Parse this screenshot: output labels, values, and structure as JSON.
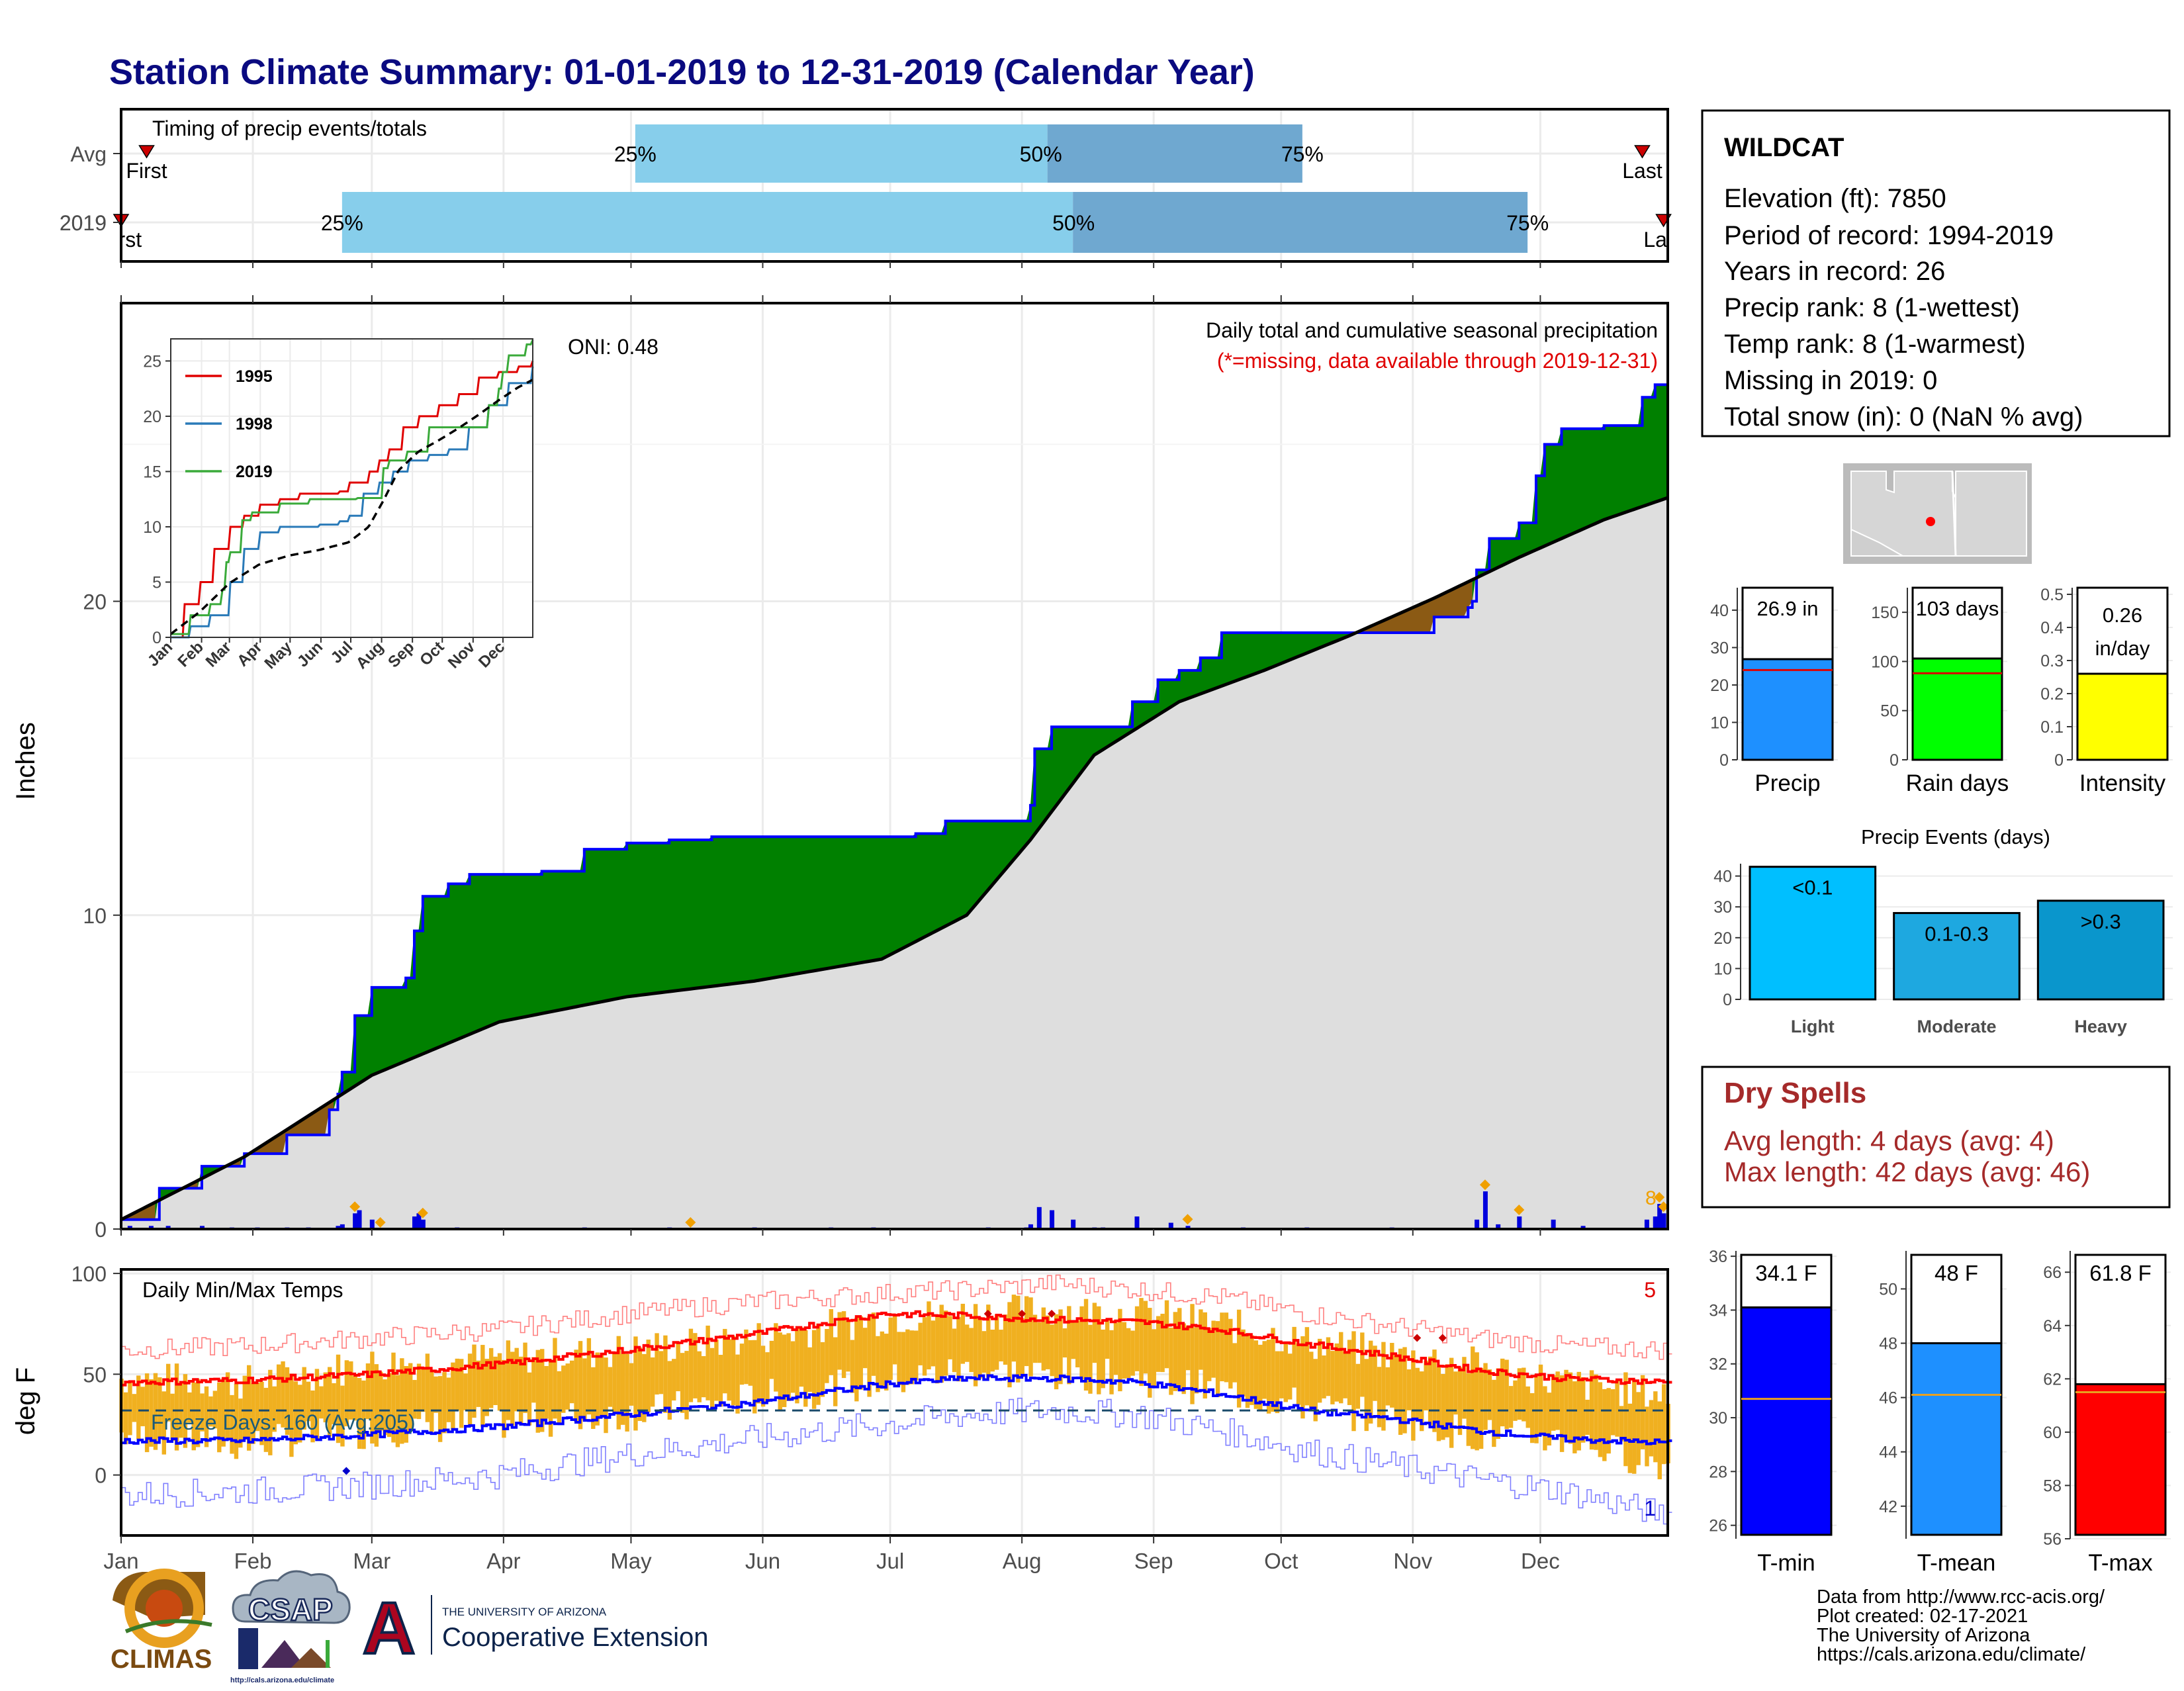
{
  "title": "Station Climate Summary: 01-01-2019 to 12-31-2019 (Calendar Year)",
  "colors": {
    "title": "#0a0a80",
    "green": "#008000",
    "brown": "#8b5a14",
    "avg_fill": "#dedede",
    "blue_line": "#0000ff",
    "light_blue": "#87ceeb",
    "mid_blue": "#6fa8d0",
    "orange": "#f0a000",
    "gold_bar": "#f0b020",
    "red": "#e00000",
    "dry_spell": "#a52a2a"
  },
  "timing": {
    "label": "Timing of precip events/totals",
    "rows": [
      {
        "name": "Avg",
        "first": "First",
        "last": "Last",
        "q25": "25%",
        "q50": "50%",
        "q75": "75%",
        "first_doy": 7,
        "q25_doy": 122,
        "q50_doy": 219,
        "q75_doy": 279,
        "last_doy": 359
      },
      {
        "name": "2019",
        "first": "First",
        "last": "Last",
        "q25": "25%",
        "q50": "50%",
        "q75": "75%",
        "first_doy": 1,
        "q25_doy": 53,
        "q50_doy": 225,
        "q75_doy": 332,
        "last_doy": 364
      }
    ]
  },
  "precip_panel": {
    "ylabel": "Inches",
    "yticks": [
      "0",
      "10",
      "20"
    ],
    "annotation_line1": "Daily total and cumulative seasonal precipitation",
    "annotation_line2": "(*=missing, data available through 2019-12-31)",
    "oni": "ONI: 0.48",
    "corner_count": "8"
  },
  "inset": {
    "yticks": [
      "0",
      "5",
      "10",
      "15",
      "20",
      "25"
    ],
    "months": [
      "Jan",
      "Feb",
      "Mar",
      "Apr",
      "May",
      "Jun",
      "Jul",
      "Aug",
      "Sep",
      "Oct",
      "Nov",
      "Dec"
    ],
    "legend": [
      {
        "label": "1995",
        "color": "#e00000"
      },
      {
        "label": "1998",
        "color": "#2a7ab8"
      },
      {
        "label": "2019",
        "color": "#3aaa3a"
      }
    ]
  },
  "temp_panel": {
    "ylabel": "deg F",
    "label": "Daily Min/Max Temps",
    "yticks": [
      "0",
      "50",
      "100"
    ],
    "freeze_days": "Freeze Days: 160 (Avg:205)",
    "max_count": "5",
    "min_count": "1",
    "freeze_line_value": 32
  },
  "months_axis": [
    "Jan",
    "Feb",
    "Mar",
    "Apr",
    "May",
    "Jun",
    "Jul",
    "Aug",
    "Sep",
    "Oct",
    "Nov",
    "Dec"
  ],
  "info_box": {
    "station": "WILDCAT",
    "lines": [
      "Elevation (ft): 7850",
      "Period of record: 1994-2019",
      "Years in record: 26",
      "Precip rank: 8 (1-wettest)",
      "Temp rank: 8 (1-warmest)",
      "Missing in 2019: 0",
      "Total snow (in): 0 (NaN % avg)"
    ]
  },
  "small_bars": [
    {
      "name": "Precip",
      "value_label": "26.9 in",
      "value": 26.9,
      "avg": 24,
      "ymax": 46,
      "ticks": [
        0,
        10,
        20,
        30,
        40
      ],
      "color": "#1e90ff"
    },
    {
      "name": "Rain days",
      "value_label": "103 days",
      "value": 103,
      "avg": 88,
      "ymax": 175,
      "ticks": [
        0,
        50,
        100,
        150
      ],
      "color": "#00ff00"
    },
    {
      "name": "Intensity",
      "value_label_1": "0.26",
      "value_label_2": "in/day",
      "value": 0.26,
      "avg": 0.265,
      "ymax": 0.52,
      "ticks": [
        0.0,
        0.1,
        0.2,
        0.3,
        0.4,
        0.5
      ],
      "color": "#ffff00"
    }
  ],
  "precip_events": {
    "title": "Precip Events (days)",
    "ymax": 44,
    "ticks": [
      0,
      10,
      20,
      30,
      40
    ],
    "bars": [
      {
        "category": "Light",
        "label": "<0.1",
        "value": 43,
        "color": "#00bfff"
      },
      {
        "category": "Moderate",
        "label": "0.1-0.3",
        "value": 28,
        "color": "#1ea8e0"
      },
      {
        "category": "Heavy",
        "label": ">0.3",
        "value": 32,
        "color": "#0a96cc"
      }
    ]
  },
  "dry_spells": {
    "title": "Dry Spells",
    "avg_line": "Avg length: 4 days (avg: 4)",
    "max_line": "Max length: 42 days (avg: 46)"
  },
  "temp_bars": [
    {
      "name": "T-min",
      "value_label": "34.1 F",
      "value": 34.1,
      "avg": 30.7,
      "ymin": 25.5,
      "ymax": 36.2,
      "ticks": [
        26,
        28,
        30,
        32,
        34,
        36
      ],
      "color": "#0000ff"
    },
    {
      "name": "T-mean",
      "value_label": "48 F",
      "value": 48.0,
      "avg": 46.1,
      "ymin": 40.8,
      "ymax": 51.4,
      "ticks": [
        42,
        44,
        46,
        48,
        50
      ],
      "color": "#1e90ff"
    },
    {
      "name": "T-max",
      "value_label": "61.8 F",
      "value": 61.8,
      "avg": 61.5,
      "ymin": 56,
      "ymax": 66.8,
      "ticks": [
        56,
        58,
        60,
        62,
        64,
        66
      ],
      "color": "#ff0000"
    }
  ],
  "credits": [
    "Data from http://www.rcc-acis.org/",
    "Plot created: 02-17-2021",
    "The University of Arizona",
    "https://cals.arizona.edu/climate/"
  ],
  "logos": {
    "climas": "CLIMAS",
    "csap": "CSAP",
    "csap_url": "http://cals.arizona.edu/climate",
    "ua_small": "THE UNIVERSITY OF ARIZONA",
    "ua_large": "Cooperative Extension",
    "ua_letter": "A"
  },
  "chart_data": [
    {
      "type": "area",
      "title": "Daily total and cumulative seasonal precipitation",
      "ylabel": "Inches",
      "ylim": [
        0,
        29.5
      ],
      "xlim_days": [
        1,
        365
      ],
      "series": [
        {
          "name": "2019",
          "x": [
            1,
            10,
            20,
            30,
            40,
            50,
            52,
            53,
            56,
            60,
            68,
            70,
            72,
            78,
            83,
            90,
            100,
            110,
            120,
            130,
            140,
            150,
            160,
            170,
            180,
            188,
            195,
            205,
            214,
            215,
            216,
            220,
            225,
            230,
            238,
            239,
            245,
            250,
            255,
            260,
            270,
            280,
            290,
            300,
            310,
            318,
            319,
            320,
            323,
            330,
            334,
            336,
            340,
            350,
            358,
            359,
            362,
            365
          ],
          "y": [
            0.3,
            1.3,
            2.0,
            2.4,
            3.0,
            3.8,
            4.3,
            5.0,
            6.8,
            7.7,
            8.0,
            9.5,
            10.6,
            11.0,
            11.3,
            11.3,
            11.4,
            12.1,
            12.3,
            12.4,
            12.5,
            12.5,
            12.5,
            12.5,
            12.5,
            12.6,
            13.0,
            13.0,
            13.0,
            13.5,
            15.3,
            16.0,
            16.0,
            16.0,
            16.0,
            16.8,
            17.5,
            17.8,
            18.2,
            19.0,
            19.0,
            19.0,
            19.0,
            19.0,
            19.5,
            19.8,
            20.0,
            21.0,
            22.0,
            22.5,
            24.0,
            25.0,
            25.5,
            25.6,
            25.6,
            26.5,
            26.9,
            26.9
          ]
        },
        {
          "name": "Average",
          "x": [
            1,
            30,
            60,
            90,
            120,
            150,
            180,
            200,
            215,
            230,
            250,
            270,
            290,
            310,
            330,
            350,
            365
          ],
          "y": [
            0.3,
            2.3,
            4.9,
            6.6,
            7.4,
            7.9,
            8.6,
            10.0,
            12.4,
            15.1,
            16.8,
            17.8,
            18.9,
            20.1,
            21.4,
            22.6,
            23.3
          ]
        }
      ],
      "daily_bars": {
        "doy": [
          3,
          8,
          12,
          20,
          27,
          33,
          40,
          45,
          52,
          53,
          56,
          57,
          60,
          70,
          71,
          72,
          80,
          110,
          130,
          150,
          168,
          178,
          205,
          214,
          215,
          217,
          220,
          225,
          230,
          232,
          240,
          248,
          252,
          265,
          280,
          300,
          320,
          322,
          325,
          330,
          338,
          345,
          360,
          362,
          363,
          364
        ],
        "inches": [
          0.1,
          0.1,
          0.1,
          0.1,
          0.05,
          0.05,
          0.05,
          0.05,
          0.1,
          0.15,
          0.5,
          0.6,
          0.3,
          0.4,
          0.5,
          0.3,
          0.05,
          0.05,
          0.05,
          0.05,
          0.05,
          0.05,
          0.05,
          0.05,
          0.15,
          0.7,
          0.6,
          0.3,
          0.05,
          0.05,
          0.4,
          0.2,
          0.1,
          0.05,
          0.05,
          0.05,
          0.3,
          1.2,
          0.15,
          0.4,
          0.3,
          0.1,
          0.3,
          0.4,
          0.8,
          0.5
        ],
        "snow_markers_doy": [
          56,
          62,
          72,
          135,
          252,
          322,
          330,
          363,
          364
        ]
      }
    },
    {
      "type": "line",
      "title": "",
      "ylim": [
        0,
        27
      ],
      "x_categories": [
        "Jan",
        "Feb",
        "Mar",
        "Apr",
        "May",
        "Jun",
        "Jul",
        "Aug",
        "Sep",
        "Oct",
        "Nov",
        "Dec"
      ],
      "series": [
        {
          "name": "1995",
          "x": [
            1,
            15,
            30,
            45,
            60,
            75,
            90,
            110,
            130,
            150,
            170,
            180,
            190,
            200,
            210,
            220,
            235,
            250,
            270,
            290,
            310,
            330,
            350,
            365
          ],
          "y": [
            0,
            3,
            5,
            8,
            10,
            11,
            12,
            12.5,
            13,
            13,
            13.2,
            14,
            14,
            15,
            16,
            17,
            19,
            20,
            21,
            22,
            23.5,
            24,
            24.5,
            25
          ]
        },
        {
          "name": "1998",
          "x": [
            1,
            20,
            40,
            60,
            75,
            90,
            110,
            130,
            150,
            170,
            180,
            195,
            210,
            225,
            240,
            260,
            280,
            300,
            320,
            340,
            365
          ],
          "y": [
            0,
            1,
            2,
            5,
            8,
            9.5,
            10,
            10,
            10.2,
            10.5,
            11,
            13,
            14,
            15,
            16,
            16.5,
            17,
            19,
            21,
            23,
            24.5
          ]
        },
        {
          "name": "2019",
          "x": [
            1,
            20,
            40,
            52,
            56,
            60,
            72,
            83,
            110,
            140,
            188,
            215,
            220,
            239,
            260,
            300,
            320,
            330,
            334,
            340,
            359,
            365
          ],
          "y": [
            0.3,
            2,
            3,
            4.3,
            6.8,
            7.7,
            10.6,
            11.3,
            12.1,
            12.5,
            12.6,
            15.3,
            16,
            16.8,
            19,
            19,
            21,
            22.5,
            24,
            25.5,
            26.5,
            26.9
          ]
        },
        {
          "name": "Average",
          "x": [
            1,
            30,
            60,
            90,
            120,
            150,
            180,
            200,
            215,
            230,
            250,
            270,
            290,
            310,
            330,
            350,
            365
          ],
          "y": [
            0.3,
            2.3,
            4.9,
            6.6,
            7.4,
            7.9,
            8.6,
            10.0,
            12.4,
            15.1,
            16.8,
            17.8,
            18.9,
            20.1,
            21.4,
            22.6,
            23.3
          ]
        }
      ]
    },
    {
      "type": "line",
      "title": "Daily Min/Max Temps",
      "ylabel": "deg F",
      "ylim": [
        -30,
        102
      ],
      "series": [
        {
          "name": "Avg max",
          "x": [
            1,
            30,
            60,
            90,
            120,
            150,
            180,
            200,
            220,
            240,
            260,
            280,
            300,
            320,
            340,
            365
          ],
          "y": [
            46,
            47,
            50,
            55,
            62,
            70,
            80,
            79,
            77,
            76,
            72,
            65,
            59,
            52,
            48,
            46
          ]
        },
        {
          "name": "Avg min",
          "x": [
            1,
            30,
            60,
            90,
            120,
            150,
            180,
            200,
            220,
            240,
            260,
            280,
            300,
            320,
            340,
            365
          ],
          "y": [
            17,
            17,
            20,
            24,
            30,
            36,
            45,
            48,
            48,
            46,
            40,
            32,
            28,
            22,
            18,
            16
          ]
        },
        {
          "name": "Record max",
          "x": [
            1,
            30,
            60,
            90,
            120,
            150,
            180,
            200,
            220,
            240,
            260,
            280,
            300,
            320,
            340,
            365
          ],
          "y": [
            62,
            64,
            68,
            72,
            80,
            86,
            90,
            92,
            95,
            92,
            88,
            80,
            74,
            68,
            64,
            62
          ]
        },
        {
          "name": "Record min",
          "x": [
            1,
            30,
            60,
            90,
            120,
            150,
            180,
            200,
            220,
            240,
            260,
            280,
            300,
            320,
            340,
            365
          ],
          "y": [
            -10,
            -8,
            -5,
            0,
            10,
            18,
            25,
            30,
            32,
            30,
            22,
            12,
            5,
            -2,
            -8,
            -20
          ]
        },
        {
          "name": "2019 max",
          "x": [
            1,
            30,
            60,
            90,
            120,
            150,
            180,
            200,
            220,
            240,
            260,
            280,
            300,
            320,
            340,
            365
          ],
          "y": [
            48,
            46,
            55,
            58,
            62,
            68,
            78,
            80,
            82,
            80,
            75,
            66,
            60,
            55,
            46,
            40
          ]
        },
        {
          "name": "2019 min",
          "x": [
            1,
            30,
            60,
            90,
            120,
            150,
            180,
            200,
            220,
            240,
            260,
            280,
            300,
            320,
            340,
            365
          ],
          "y": [
            20,
            15,
            22,
            26,
            30,
            38,
            46,
            52,
            50,
            48,
            42,
            34,
            28,
            20,
            18,
            5
          ]
        }
      ]
    }
  ]
}
